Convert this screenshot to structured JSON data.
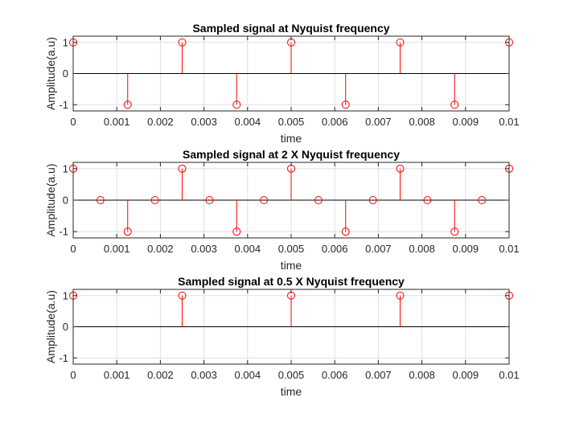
{
  "chart_data": [
    {
      "type": "stem",
      "title": "Sampled signal at Nyquist frequency",
      "xlabel": "time",
      "ylabel": "Amplitude(a.u)",
      "xlim": [
        0,
        0.01
      ],
      "ylim": [
        -1.2,
        1.2
      ],
      "xticks": [
        0,
        0.001,
        0.002,
        0.003,
        0.004,
        0.005,
        0.006,
        0.007,
        0.008,
        0.009,
        0.01
      ],
      "xtick_labels": [
        "0",
        "0.001",
        "0.002",
        "0.003",
        "0.004",
        "0.005",
        "0.006",
        "0.007",
        "0.008",
        "0.009",
        "0.01"
      ],
      "yticks": [
        -1,
        0,
        1
      ],
      "ytick_labels": [
        "-1",
        "0",
        "1"
      ],
      "grid": true,
      "color": "#ff0000",
      "x": [
        0,
        0.00125,
        0.0025,
        0.00375,
        0.005,
        0.00625,
        0.0075,
        0.00875,
        0.01
      ],
      "y": [
        1,
        -1,
        1,
        -1,
        1,
        -1,
        1,
        -1,
        1
      ]
    },
    {
      "type": "stem",
      "title": "Sampled signal at 2 X Nyquist frequency",
      "xlabel": "time",
      "ylabel": "Amplitude(a.u)",
      "xlim": [
        0,
        0.01
      ],
      "ylim": [
        -1.2,
        1.2
      ],
      "xticks": [
        0,
        0.001,
        0.002,
        0.003,
        0.004,
        0.005,
        0.006,
        0.007,
        0.008,
        0.009,
        0.01
      ],
      "xtick_labels": [
        "0",
        "0.001",
        "0.002",
        "0.003",
        "0.004",
        "0.005",
        "0.006",
        "0.007",
        "0.008",
        "0.009",
        "0.01"
      ],
      "yticks": [
        -1,
        0,
        1
      ],
      "ytick_labels": [
        "-1",
        "0",
        "1"
      ],
      "grid": true,
      "color": "#ff0000",
      "x": [
        0,
        0.000625,
        0.00125,
        0.001875,
        0.0025,
        0.003125,
        0.00375,
        0.004375,
        0.005,
        0.005625,
        0.00625,
        0.006875,
        0.0075,
        0.008125,
        0.00875,
        0.009375,
        0.01
      ],
      "y": [
        1,
        0,
        -1,
        0,
        1,
        0,
        -1,
        0,
        1,
        0,
        -1,
        0,
        1,
        0,
        -1,
        0,
        1
      ]
    },
    {
      "type": "stem",
      "title": "Sampled signal at 0.5 X Nyquist frequency",
      "xlabel": "time",
      "ylabel": "Amplitude(a.u)",
      "xlim": [
        0,
        0.01
      ],
      "ylim": [
        -1.2,
        1.2
      ],
      "xticks": [
        0,
        0.001,
        0.002,
        0.003,
        0.004,
        0.005,
        0.006,
        0.007,
        0.008,
        0.009,
        0.01
      ],
      "xtick_labels": [
        "0",
        "0.001",
        "0.002",
        "0.003",
        "0.004",
        "0.005",
        "0.006",
        "0.007",
        "0.008",
        "0.009",
        "0.01"
      ],
      "yticks": [
        -1,
        0,
        1
      ],
      "ytick_labels": [
        "-1",
        "0",
        "1"
      ],
      "grid": true,
      "color": "#ff0000",
      "x": [
        0,
        0.0025,
        0.005,
        0.0075,
        0.01
      ],
      "y": [
        1,
        1,
        1,
        1,
        1
      ]
    }
  ]
}
